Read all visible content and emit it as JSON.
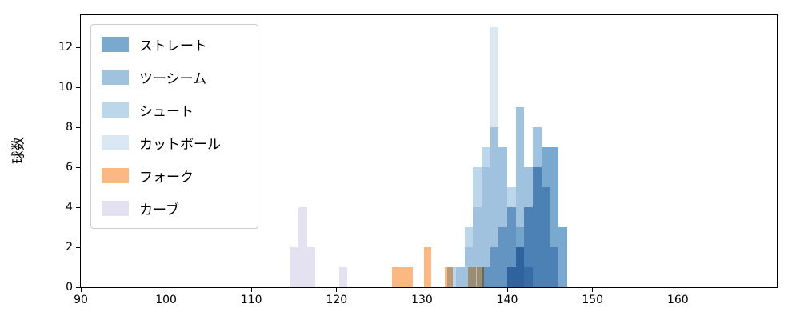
{
  "figure": {
    "background": "#ffffff",
    "axis_color": "#000000"
  },
  "chart_data": {
    "type": "histogram",
    "title": "",
    "xlabel": "",
    "ylabel": "球数",
    "xlim": [
      90,
      171.6
    ],
    "ylim": [
      0,
      13.6
    ],
    "x_ticks": [
      90,
      100,
      110,
      120,
      130,
      140,
      150,
      160
    ],
    "y_ticks": [
      0,
      2,
      4,
      6,
      8,
      10,
      12
    ],
    "grid": false,
    "legend_position": "upper left",
    "series": [
      {
        "name": "ストレート",
        "color": "#7aa9d0",
        "bars": [
          {
            "x": 140,
            "w": 1,
            "h": 1
          },
          {
            "x": 141,
            "w": 1,
            "h": 2
          },
          {
            "x": 142,
            "w": 1,
            "h": 4
          },
          {
            "x": 143,
            "w": 1,
            "h": 6
          },
          {
            "x": 144,
            "w": 1,
            "h": 7
          },
          {
            "x": 145,
            "w": 1,
            "h": 7
          },
          {
            "x": 146,
            "w": 1,
            "h": 3
          }
        ]
      },
      {
        "name": "ツーシーム",
        "color": "#9fc3de",
        "bars": [
          {
            "x": 137,
            "w": 1,
            "h": 1
          },
          {
            "x": 138,
            "w": 1,
            "h": 2
          },
          {
            "x": 139,
            "w": 1,
            "h": 3
          },
          {
            "x": 140,
            "w": 1,
            "h": 4
          },
          {
            "x": 141,
            "w": 1,
            "h": 9
          },
          {
            "x": 142,
            "w": 1,
            "h": 6
          },
          {
            "x": 143,
            "w": 1,
            "h": 8
          },
          {
            "x": 144,
            "w": 1,
            "h": 5
          },
          {
            "x": 145,
            "w": 1,
            "h": 2
          }
        ]
      },
      {
        "name": "シュート",
        "color": "#bcd6ea",
        "bars": [
          {
            "x": 133,
            "w": 1,
            "h": 1
          },
          {
            "x": 134,
            "w": 1,
            "h": 1
          },
          {
            "x": 135,
            "w": 1,
            "h": 3
          },
          {
            "x": 136,
            "w": 1,
            "h": 6
          },
          {
            "x": 137,
            "w": 1,
            "h": 7
          },
          {
            "x": 138,
            "w": 1,
            "h": 8
          },
          {
            "x": 139,
            "w": 1,
            "h": 7
          },
          {
            "x": 140,
            "w": 1,
            "h": 5
          },
          {
            "x": 141,
            "w": 1,
            "h": 3
          },
          {
            "x": 142,
            "w": 1,
            "h": 1
          }
        ]
      },
      {
        "name": "カットボール",
        "color": "#d9e7f3",
        "bars": [
          {
            "x": 134,
            "w": 1,
            "h": 1
          },
          {
            "x": 135,
            "w": 1,
            "h": 2
          },
          {
            "x": 136,
            "w": 1,
            "h": 4
          },
          {
            "x": 137,
            "w": 1,
            "h": 6
          },
          {
            "x": 138,
            "w": 1,
            "h": 13
          },
          {
            "x": 139,
            "w": 1,
            "h": 7
          },
          {
            "x": 140,
            "w": 1,
            "h": 4
          },
          {
            "x": 141,
            "w": 1,
            "h": 2
          }
        ]
      },
      {
        "name": "フォーク",
        "color": "#fbb880",
        "bars": [
          {
            "x": 126.5,
            "w": 1.2,
            "h": 1
          },
          {
            "x": 127.7,
            "w": 1.2,
            "h": 1
          },
          {
            "x": 130.2,
            "w": 0.9,
            "h": 2
          },
          {
            "x": 132.7,
            "w": 0.9,
            "h": 1
          },
          {
            "x": 135.4,
            "w": 0.9,
            "h": 1
          },
          {
            "x": 136.4,
            "w": 0.9,
            "h": 1
          }
        ]
      },
      {
        "name": "カーブ",
        "color": "#e4e2f0",
        "bars": [
          {
            "x": 114.5,
            "w": 1,
            "h": 2
          },
          {
            "x": 115.5,
            "w": 1,
            "h": 4
          },
          {
            "x": 116.5,
            "w": 1,
            "h": 2
          },
          {
            "x": 120.3,
            "w": 0.9,
            "h": 1
          }
        ]
      }
    ]
  }
}
